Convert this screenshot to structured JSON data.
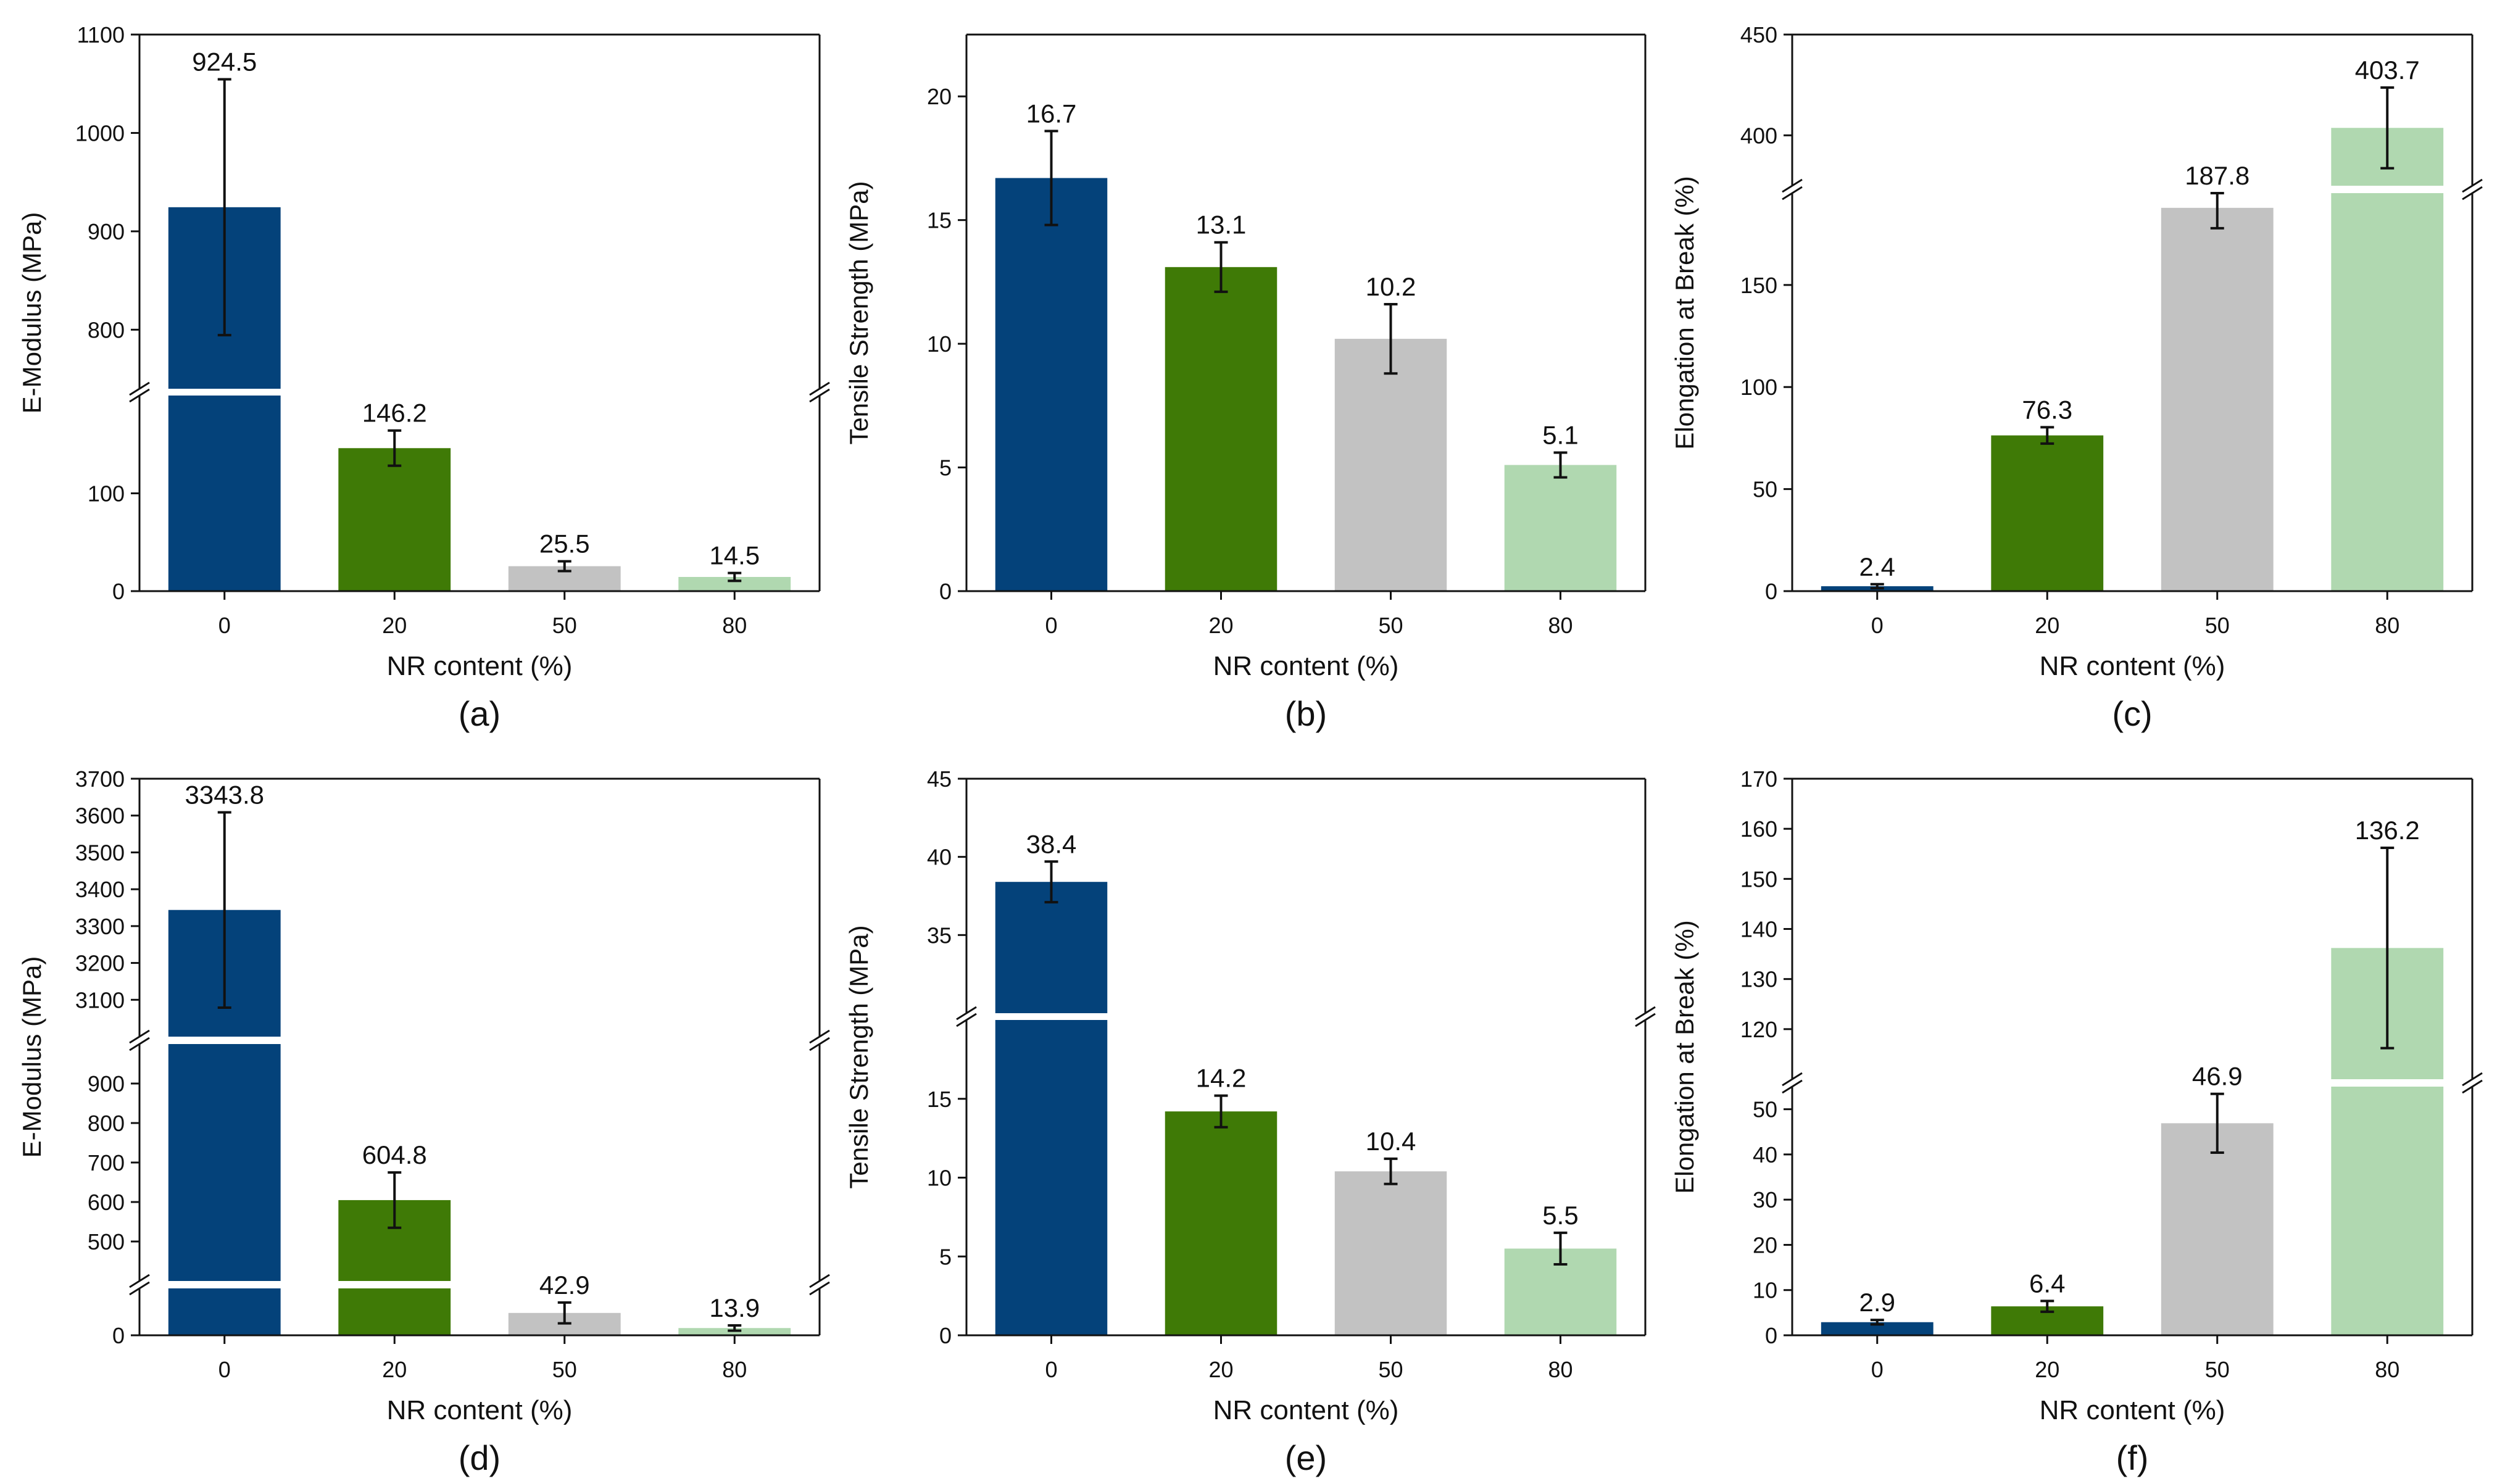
{
  "figure": {
    "colors": {
      "bars": [
        "#04427a",
        "#3f7a06",
        "#c2c2c2",
        "#b0d8b0"
      ],
      "axis": "#111111",
      "error": "#111111",
      "background": "#ffffff"
    }
  },
  "chart_data": [
    {
      "panel": "(a)",
      "type": "bar",
      "xlabel": "NR content (%)",
      "ylabel": "E-Modulus (MPa)",
      "categories": [
        "0",
        "20",
        "50",
        "80"
      ],
      "values": [
        924.5,
        146.2,
        25.5,
        14.5
      ],
      "value_labels": [
        "924.5",
        "146.2",
        "25.5",
        "14.5"
      ],
      "errors": [
        130,
        18,
        5,
        4
      ],
      "axis_break": {
        "lower": [
          0,
          200
        ],
        "upper": [
          740,
          1100
        ]
      },
      "yticks": [
        0,
        100,
        800,
        900,
        1000,
        1100
      ],
      "ytick_labels": [
        "0",
        "100",
        "800",
        "900",
        "1000",
        "1100"
      ]
    },
    {
      "panel": "(b)",
      "type": "bar",
      "xlabel": "NR content (%)",
      "ylabel": "Tensile Strength (MPa)",
      "categories": [
        "0",
        "20",
        "50",
        "80"
      ],
      "values": [
        16.7,
        13.1,
        10.2,
        5.1
      ],
      "value_labels": [
        "16.7",
        "13.1",
        "10.2",
        "5.1"
      ],
      "errors": [
        1.9,
        1.0,
        1.4,
        0.5
      ],
      "ylim": [
        0,
        22.5
      ],
      "yticks": [
        0,
        5,
        10,
        15,
        20
      ],
      "ytick_labels": [
        "0",
        "5",
        "10",
        "15",
        "20"
      ]
    },
    {
      "panel": "(c)",
      "type": "bar",
      "xlabel": "NR content (%)",
      "ylabel": "Elongation at Break (%)",
      "categories": [
        "0",
        "20",
        "50",
        "80"
      ],
      "values": [
        2.4,
        76.3,
        187.8,
        403.7
      ],
      "value_labels": [
        "2.4",
        "76.3",
        "187.8",
        "403.7"
      ],
      "errors": [
        1,
        4,
        10,
        20
      ],
      "axis_break": {
        "lower": [
          0,
          195
        ],
        "upper": [
          375,
          450
        ]
      },
      "yticks": [
        0,
        50,
        100,
        150,
        400,
        450
      ],
      "ytick_labels": [
        "0",
        "50",
        "100",
        "150",
        "400",
        "450"
      ]
    },
    {
      "panel": "(d)",
      "type": "bar",
      "xlabel": "NR content (%)",
      "ylabel": "E-Modulus (MPa)",
      "categories": [
        "0",
        "20",
        "50",
        "80"
      ],
      "values": [
        3343.8,
        604.8,
        42.9,
        13.9
      ],
      "value_labels": [
        "3343.8",
        "604.8",
        "42.9",
        "13.9"
      ],
      "errors": [
        265,
        70,
        20,
        5
      ],
      "axis_break": {
        "lower": [
          0,
          90
        ],
        "middle": [
          400,
          1000
        ],
        "upper": [
          3000,
          3700
        ]
      },
      "yticks": [
        0,
        500,
        600,
        700,
        800,
        900,
        3100,
        3200,
        3300,
        3400,
        3500,
        3600,
        3700
      ],
      "ytick_labels": [
        "0",
        "500",
        "600",
        "700",
        "800",
        "900",
        "3100",
        "3200",
        "3300",
        "3400",
        "3500",
        "3600",
        "3700"
      ]
    },
    {
      "panel": "(e)",
      "type": "bar",
      "xlabel": "NR content (%)",
      "ylabel": "Tensile Strength (MPa)",
      "categories": [
        "0",
        "20",
        "50",
        "80"
      ],
      "values": [
        38.4,
        14.2,
        10.4,
        5.5
      ],
      "value_labels": [
        "38.4",
        "14.2",
        "10.4",
        "5.5"
      ],
      "errors": [
        1.3,
        1.0,
        0.8,
        1.0
      ],
      "axis_break": {
        "lower": [
          0,
          20
        ],
        "upper": [
          30,
          45
        ]
      },
      "yticks": [
        0,
        5,
        10,
        15,
        35,
        40,
        45
      ],
      "ytick_labels": [
        "0",
        "5",
        "10",
        "15",
        "35",
        "40",
        "45"
      ]
    },
    {
      "panel": "(f)",
      "type": "bar",
      "xlabel": "NR content (%)",
      "ylabel": "Elongation at Break (%)",
      "categories": [
        "0",
        "20",
        "50",
        "80"
      ],
      "values": [
        2.9,
        6.4,
        46.9,
        136.2
      ],
      "value_labels": [
        "2.9",
        "6.4",
        "46.9",
        "136.2"
      ],
      "errors": [
        0.5,
        1.2,
        6.5,
        20
      ],
      "axis_break": {
        "lower": [
          0,
          55
        ],
        "upper": [
          110,
          170
        ]
      },
      "yticks": [
        0,
        10,
        20,
        30,
        40,
        50,
        120,
        130,
        140,
        150,
        160,
        170
      ],
      "ytick_labels": [
        "0",
        "10",
        "20",
        "30",
        "40",
        "50",
        "120",
        "130",
        "140",
        "150",
        "160",
        "170"
      ]
    }
  ]
}
